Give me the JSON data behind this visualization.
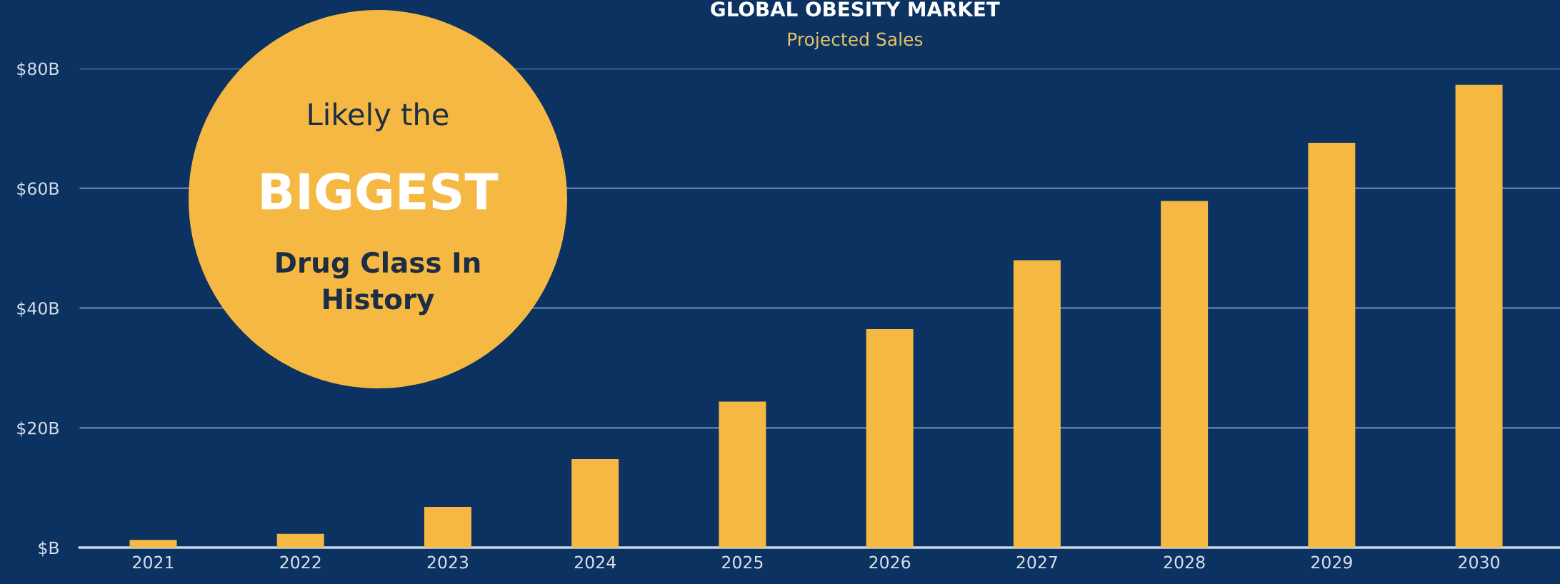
{
  "chart_data": {
    "type": "bar",
    "title": "GLOBAL OBESITY MARKET",
    "subtitle": "Projected Sales",
    "categories": [
      "2021",
      "2022",
      "2023",
      "2024",
      "2025",
      "2026",
      "2027",
      "2028",
      "2029",
      "2030"
    ],
    "values": [
      1.3,
      2.3,
      6.8,
      14.8,
      24.4,
      36.5,
      48.0,
      57.9,
      67.6,
      77.3
    ],
    "color": "#f5b843",
    "ylim": [
      0,
      80
    ],
    "yticks": [
      {
        "value": 0,
        "label": "$B"
      },
      {
        "value": 20,
        "label": "$20B"
      },
      {
        "value": 40,
        "label": "$40B"
      },
      {
        "value": 60,
        "label": "$60B"
      },
      {
        "value": 80,
        "label": "$80B"
      }
    ],
    "grid": "y",
    "annotations": [
      "Likely the",
      "BIGGEST",
      "Drug Class In\nHistory"
    ]
  }
}
